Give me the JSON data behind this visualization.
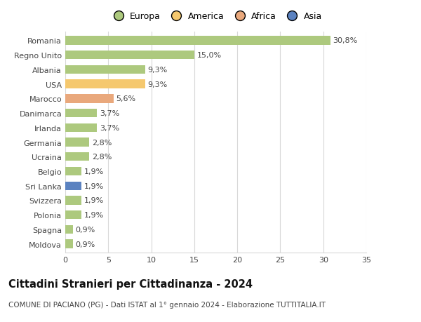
{
  "categories": [
    "Romania",
    "Regno Unito",
    "Albania",
    "USA",
    "Marocco",
    "Danimarca",
    "Irlanda",
    "Germania",
    "Ucraina",
    "Belgio",
    "Sri Lanka",
    "Svizzera",
    "Polonia",
    "Spagna",
    "Moldova"
  ],
  "values": [
    30.8,
    15.0,
    9.3,
    9.3,
    5.6,
    3.7,
    3.7,
    2.8,
    2.8,
    1.9,
    1.9,
    1.9,
    1.9,
    0.9,
    0.9
  ],
  "labels": [
    "30,8%",
    "15,0%",
    "9,3%",
    "9,3%",
    "5,6%",
    "3,7%",
    "3,7%",
    "2,8%",
    "2,8%",
    "1,9%",
    "1,9%",
    "1,9%",
    "1,9%",
    "0,9%",
    "0,9%"
  ],
  "colors": [
    "#adc97e",
    "#adc97e",
    "#adc97e",
    "#f5c86e",
    "#e9a87c",
    "#adc97e",
    "#adc97e",
    "#adc97e",
    "#adc97e",
    "#adc97e",
    "#5b82c0",
    "#adc97e",
    "#adc97e",
    "#adc97e",
    "#adc97e"
  ],
  "legend_labels": [
    "Europa",
    "America",
    "Africa",
    "Asia"
  ],
  "legend_colors": [
    "#adc97e",
    "#f5c86e",
    "#e9a87c",
    "#5b82c0"
  ],
  "xlim": [
    0,
    35
  ],
  "xticks": [
    0,
    5,
    10,
    15,
    20,
    25,
    30,
    35
  ],
  "title": "Cittadini Stranieri per Cittadinanza - 2024",
  "subtitle": "COMUNE DI PACIANO (PG) - Dati ISTAT al 1° gennaio 2024 - Elaborazione TUTTITALIA.IT",
  "background_color": "#ffffff",
  "grid_color": "#d8d8d8",
  "bar_height": 0.6,
  "label_fontsize": 8,
  "tick_fontsize": 8,
  "title_fontsize": 10.5,
  "subtitle_fontsize": 7.5,
  "legend_fontsize": 9
}
